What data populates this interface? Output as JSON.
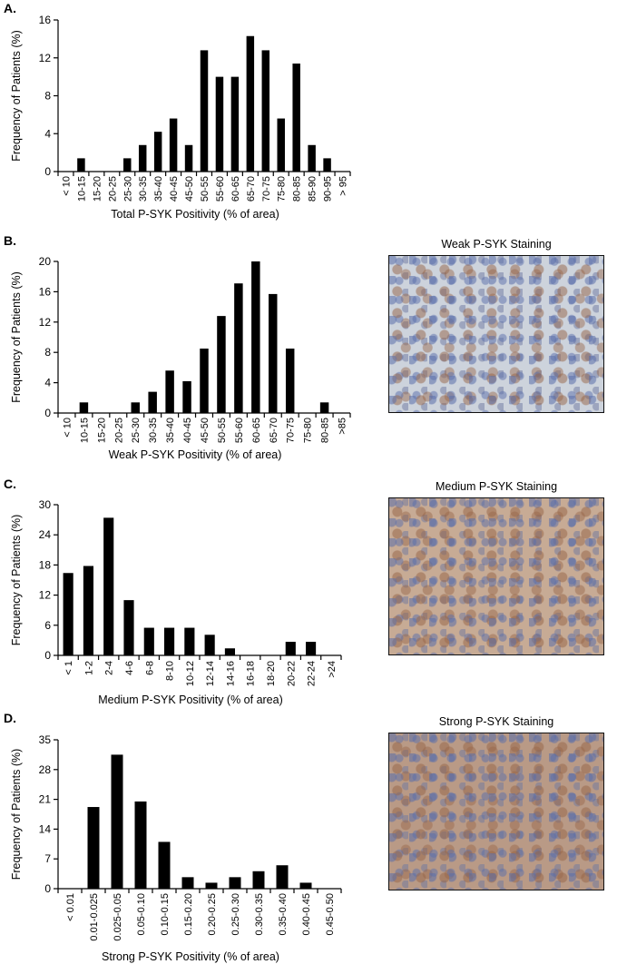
{
  "chart_data": [
    {
      "panel": "A.",
      "type": "bar",
      "ylabel": "Frequency of Patients (%)",
      "xlabel": "Total P-SYK Positivity (% of area)",
      "ylim": [
        0,
        16
      ],
      "yticks": [
        0,
        4,
        8,
        12,
        16
      ],
      "categories": [
        "< 10",
        "10-15",
        "15-20",
        "20-25",
        "25-30",
        "30-35",
        "35-40",
        "40-45",
        "45-50",
        "50-55",
        "55-60",
        "60-65",
        "65-70",
        "70-75",
        "75-80",
        "80-85",
        "85-90",
        "90-95",
        "> 95"
      ],
      "values": [
        0,
        1.4,
        0,
        0,
        1.4,
        2.8,
        4.2,
        5.6,
        2.8,
        12.8,
        10.0,
        10.0,
        14.3,
        12.8,
        5.6,
        11.4,
        2.8,
        1.4,
        0
      ]
    },
    {
      "panel": "B.",
      "type": "bar",
      "ylabel": "Frequency of Patients (%)",
      "xlabel": "Weak P-SYK Positivity (% of area)",
      "ylim": [
        0,
        20
      ],
      "yticks": [
        0,
        4,
        8,
        12,
        16,
        20
      ],
      "categories": [
        "< 10",
        "10-15",
        "15-20",
        "20-25",
        "25-30",
        "30-35",
        "35-40",
        "40-45",
        "45-50",
        "50-55",
        "55-60",
        "60-65",
        "65-70",
        "70-75",
        "75-80",
        "80-85",
        ">85"
      ],
      "values": [
        0,
        1.4,
        0,
        0,
        1.4,
        2.8,
        5.6,
        4.2,
        8.5,
        12.8,
        17.1,
        20.0,
        15.7,
        8.5,
        0,
        1.4,
        0
      ]
    },
    {
      "panel": "C.",
      "type": "bar",
      "ylabel": "Frequency of Patients (%)",
      "xlabel": "Medium P-SYK Positivity (% of area)",
      "ylim": [
        0,
        30
      ],
      "yticks": [
        0,
        6,
        12,
        18,
        24,
        30
      ],
      "categories": [
        "< 1",
        "1-2",
        "2-4",
        "4-6",
        "6-8",
        "8-10",
        "10-12",
        "12-14",
        "14-16",
        "16-18",
        "18-20",
        "20-22",
        "22-24",
        ">24"
      ],
      "values": [
        16.4,
        17.8,
        27.4,
        11.0,
        5.5,
        5.5,
        5.5,
        4.1,
        1.4,
        0,
        0,
        2.7,
        2.7,
        0
      ]
    },
    {
      "panel": "D.",
      "type": "bar",
      "ylabel": "Frequency of Patients (%)",
      "xlabel": "Strong P-SYK Positivity (% of area)",
      "ylim": [
        0,
        35
      ],
      "yticks": [
        0,
        7,
        14,
        21,
        28,
        35
      ],
      "categories": [
        "< 0.01",
        "0.01-0.025",
        "0.025-0.05",
        "0.05-0.10",
        "0.10-0.15",
        "0.15-0.20",
        "0.20-0.25",
        "0.25-0.30",
        "0.30-0.35",
        "0.35-0.40",
        "0.40-0.45",
        "0.45-0.50"
      ],
      "values": [
        0,
        19.2,
        31.5,
        20.5,
        11.0,
        2.7,
        1.4,
        2.7,
        4.1,
        5.5,
        1.4,
        0
      ]
    }
  ],
  "micrographs": {
    "weak_caption": "Weak P-SYK Staining",
    "medium_caption": "Medium P-SYK Staining",
    "strong_caption": "Strong P-SYK Staining"
  },
  "colors": {
    "bar": "#000000",
    "axis": "#000000"
  }
}
